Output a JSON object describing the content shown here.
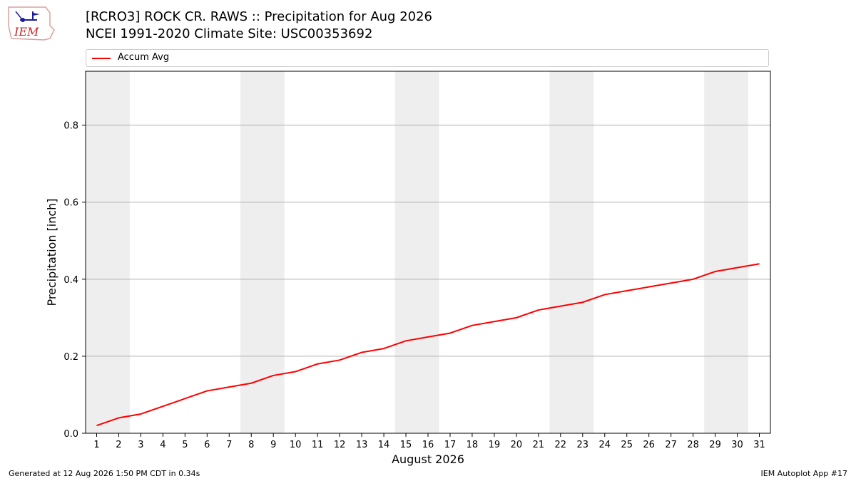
{
  "header": {
    "logo_text": "IEM",
    "title": "[RCRO3] ROCK CR. RAWS :: Precipitation for Aug 2026",
    "subtitle": "NCEI 1991-2020 Climate Site: USC00353692"
  },
  "footer": {
    "generated": "Generated at 12 Aug 2026 1:50 PM CDT in 0.34s",
    "app": "IEM Autoplot App #17"
  },
  "colors": {
    "line": "#ff0000",
    "weekend_band": "#eeeeee",
    "grid": "#b0b0b0"
  },
  "chart_data": {
    "type": "line",
    "title": "[RCRO3] ROCK CR. RAWS :: Precipitation for Aug 2026",
    "subtitle": "NCEI 1991-2020 Climate Site: USC00353692",
    "xlabel": "August 2026",
    "ylabel": "Precipitation [inch]",
    "x": [
      1,
      2,
      3,
      4,
      5,
      6,
      7,
      8,
      9,
      10,
      11,
      12,
      13,
      14,
      15,
      16,
      17,
      18,
      19,
      20,
      21,
      22,
      23,
      24,
      25,
      26,
      27,
      28,
      29,
      30,
      31
    ],
    "xlim": [
      0.5,
      31.5
    ],
    "ylim": [
      0,
      0.94
    ],
    "yticks": [
      0.0,
      0.2,
      0.4,
      0.6,
      0.8
    ],
    "ytick_labels": [
      "0.0",
      "0.2",
      "0.4",
      "0.6",
      "0.8"
    ],
    "grid": "y-major",
    "legend_position": "top",
    "shaded_day_ranges": [
      [
        1,
        2
      ],
      [
        8,
        9
      ],
      [
        15,
        16
      ],
      [
        22,
        23
      ],
      [
        29,
        30
      ]
    ],
    "series": [
      {
        "name": "Accum Avg",
        "color": "#ff0000",
        "values": [
          0.02,
          0.04,
          0.05,
          0.07,
          0.09,
          0.11,
          0.12,
          0.13,
          0.15,
          0.16,
          0.18,
          0.19,
          0.21,
          0.22,
          0.24,
          0.25,
          0.26,
          0.28,
          0.29,
          0.3,
          0.32,
          0.33,
          0.34,
          0.36,
          0.37,
          0.38,
          0.39,
          0.4,
          0.42,
          0.43,
          0.44
        ]
      }
    ]
  }
}
